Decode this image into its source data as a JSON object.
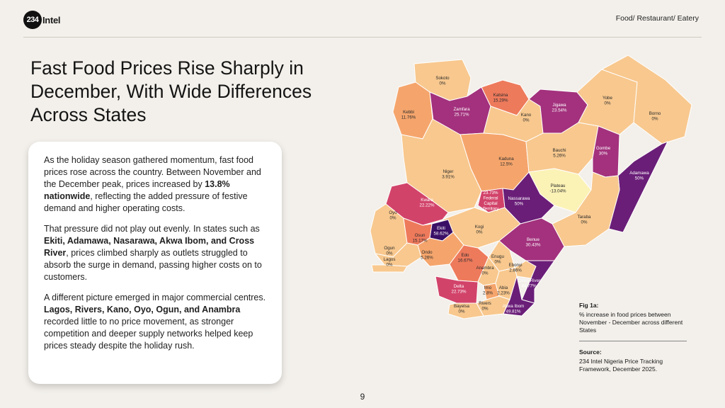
{
  "header": {
    "logo_number": "234",
    "logo_word": "Intel",
    "category": "Food/ Restaurant/ Eatery"
  },
  "title": "Fast Food Prices Rise Sharply in December, With Wide Differences Across States",
  "body": {
    "p1_a": "As the holiday season gathered momentum, fast food prices rose across the country. Between November and the December peak, prices increased by ",
    "p1_bold": "13.8% nationwide",
    "p1_b": ", reflecting the added pressure of festive demand and higher operating costs.",
    "p2_a": "That pressure did not play out evenly. In states such as ",
    "p2_bold": "Ekiti, Adamawa, Nasarawa, Akwa Ibom, and Cross River",
    "p2_b": ", prices climbed sharply as outlets struggled to absorb the surge in demand, passing higher costs on to customers.",
    "p3_a": "A different picture emerged in major commercial centres. ",
    "p3_bold": "Lagos, Rivers, Kano, Oyo, Ogun, and Anambra",
    "p3_b": " recorded little to no price movement, as stronger competition and deeper supply networks helped keep prices steady despite the holiday rush."
  },
  "map": {
    "colors": {
      "zero": "#f8c88e",
      "low": "#f5a56c",
      "mid": "#ee7a5c",
      "high": "#d2436a",
      "vhigh": "#a3317d",
      "top": "#6a1e78",
      "max": "#3a0f66",
      "neg": "#fbf2b6"
    },
    "states": [
      {
        "name": "Sokoto",
        "value": "0%",
        "level": "zero"
      },
      {
        "name": "Kebbi",
        "value": "11.76%",
        "level": "low"
      },
      {
        "name": "Zamfara",
        "value": "25.71%",
        "level": "vhigh"
      },
      {
        "name": "Katsina",
        "value": "15.29%",
        "level": "mid"
      },
      {
        "name": "Kano",
        "value": "0%",
        "level": "zero"
      },
      {
        "name": "Jigawa",
        "value": "23.54%",
        "level": "vhigh"
      },
      {
        "name": "Yobe",
        "value": "0%",
        "level": "zero"
      },
      {
        "name": "Borno",
        "value": "0%",
        "level": "zero"
      },
      {
        "name": "Kaduna",
        "value": "12.5%",
        "level": "low"
      },
      {
        "name": "Bauchi",
        "value": "5.26%",
        "level": "zero"
      },
      {
        "name": "Gombe",
        "value": "30%",
        "level": "vhigh"
      },
      {
        "name": "Niger",
        "value": "3.91%",
        "level": "zero"
      },
      {
        "name": "Plateau",
        "value": "-13.04%",
        "level": "neg"
      },
      {
        "name": "Adamawa",
        "value": "50%",
        "level": "top"
      },
      {
        "name": "Kwara",
        "value": "22.22%",
        "level": "high"
      },
      {
        "name": "Federal Capital Territory",
        "value": "23.73%",
        "level": "high"
      },
      {
        "name": "Nassarawa",
        "value": "50%",
        "level": "top"
      },
      {
        "name": "Oyo",
        "value": "0%",
        "level": "zero"
      },
      {
        "name": "Taraba",
        "value": "0%",
        "level": "zero"
      },
      {
        "name": "Kogi",
        "value": "0%",
        "level": "zero"
      },
      {
        "name": "Ekiti",
        "value": "58.62%",
        "level": "max"
      },
      {
        "name": "Osun",
        "value": "15.17%",
        "level": "mid"
      },
      {
        "name": "Ondo",
        "value": "5.26%",
        "level": "low"
      },
      {
        "name": "Benue",
        "value": "30.43%",
        "level": "vhigh"
      },
      {
        "name": "Ogun",
        "value": "0%",
        "level": "zero"
      },
      {
        "name": "Lagos",
        "value": "0%",
        "level": "zero"
      },
      {
        "name": "Edo",
        "value": "16.67%",
        "level": "mid"
      },
      {
        "name": "Enugu",
        "value": "0%",
        "level": "zero"
      },
      {
        "name": "Ebonyi",
        "value": "2.86%",
        "level": "zero"
      },
      {
        "name": "Anambra",
        "value": "0%",
        "level": "zero"
      },
      {
        "name": "Cross River",
        "value": "44.77%",
        "level": "top"
      },
      {
        "name": "Delta",
        "value": "22.73%",
        "level": "high"
      },
      {
        "name": "Imo",
        "value": "2.8%",
        "level": "low"
      },
      {
        "name": "Abia",
        "value": "2.23%",
        "level": "zero"
      },
      {
        "name": "Rivers",
        "value": "0%",
        "level": "zero"
      },
      {
        "name": "Bayelsa",
        "value": "0%",
        "level": "zero"
      },
      {
        "name": "Akwa Ibom",
        "value": "49.81%",
        "level": "top"
      }
    ]
  },
  "figure": {
    "label": "Fig 1a:",
    "description": "% increase in food prices between November - December across different States"
  },
  "source": {
    "label": "Source:",
    "description": "234 Intel Nigeria Price Tracking Framework, December 2025."
  },
  "page_number": "9"
}
